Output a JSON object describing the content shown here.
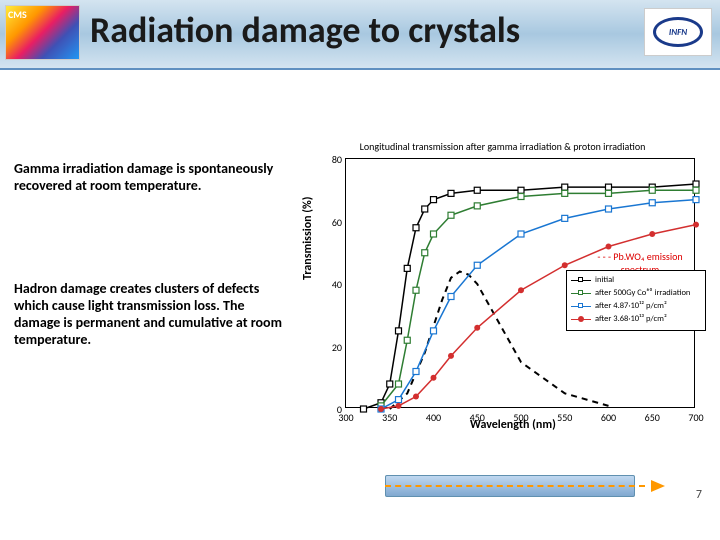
{
  "header": {
    "title": "Radiation damage to crystals",
    "logo_left": "CMS",
    "logo_right": "INFN"
  },
  "text": {
    "para1": "Gamma irradiation damage is spontaneously recovered at room temperature.",
    "para2": "Hadron damage creates clusters of defects which cause light transmission loss. The damage is permanent and cumulative at room temperature."
  },
  "chart": {
    "type": "line",
    "title": "Longitudinal transmission after gamma irradiation & proton irradiation",
    "xlabel": "Wavelength (nm)",
    "ylabel": "Transmission (%)",
    "label_fontsize": 12,
    "xlim": [
      300,
      700
    ],
    "xtick_step": 50,
    "ylim": [
      0,
      80
    ],
    "ytick_step": 20,
    "background_color": "#ffffff",
    "series": [
      {
        "name": "initial",
        "color": "#000000",
        "marker": "square-open",
        "dash": "none",
        "x": [
          320,
          340,
          350,
          360,
          370,
          380,
          390,
          400,
          420,
          450,
          500,
          550,
          600,
          650,
          700
        ],
        "y": [
          0,
          2,
          8,
          25,
          45,
          58,
          64,
          67,
          69,
          70,
          70,
          71,
          71,
          71,
          72
        ]
      },
      {
        "name": "after 500Gy Co60 irradiation",
        "color": "#2e7d32",
        "marker": "square-open",
        "dash": "none",
        "x": [
          340,
          360,
          370,
          380,
          390,
          400,
          420,
          450,
          500,
          550,
          600,
          650,
          700
        ],
        "y": [
          1,
          8,
          22,
          38,
          50,
          56,
          62,
          65,
          68,
          69,
          69,
          70,
          70
        ]
      },
      {
        "name": "after 4.87·10^12 p/cm²",
        "color": "#1976d2",
        "marker": "square-open",
        "dash": "none",
        "x": [
          340,
          360,
          380,
          400,
          420,
          450,
          500,
          550,
          600,
          650,
          700
        ],
        "y": [
          0,
          3,
          12,
          25,
          36,
          46,
          56,
          61,
          64,
          66,
          67
        ]
      },
      {
        "name": "after 3.68·10^13 p/cm²",
        "color": "#d32f2f",
        "marker": "circle",
        "dash": "none",
        "x": [
          340,
          360,
          380,
          400,
          420,
          450,
          500,
          550,
          600,
          650,
          700
        ],
        "y": [
          0,
          1,
          4,
          10,
          17,
          26,
          38,
          46,
          52,
          56,
          59
        ]
      }
    ],
    "emission_spectrum": {
      "label": "- - - Pb.WO₄ emission spectrum",
      "color": "#000000",
      "dash": "dash",
      "x": [
        350,
        370,
        390,
        410,
        420,
        430,
        440,
        450,
        470,
        500,
        550,
        600
      ],
      "y": [
        0,
        5,
        18,
        35,
        42,
        44,
        43,
        40,
        30,
        15,
        5,
        1
      ]
    },
    "legend_items": [
      {
        "text": "initial",
        "color": "#000000",
        "marker": "square-open"
      },
      {
        "text": "after 500Gy Co⁶⁰ irradiation",
        "color": "#2e7d32",
        "marker": "square-open"
      },
      {
        "text": "after 4.87·10¹² p/cm²",
        "color": "#1976d2",
        "marker": "square-open"
      },
      {
        "text": "after 3.68·10¹³ p/cm²",
        "color": "#d32f2f",
        "marker": "circle"
      }
    ]
  },
  "bottom_bar": {
    "arrow_color": "#ff9800",
    "bar_color": "#a0c0e0"
  },
  "page_number": "7"
}
